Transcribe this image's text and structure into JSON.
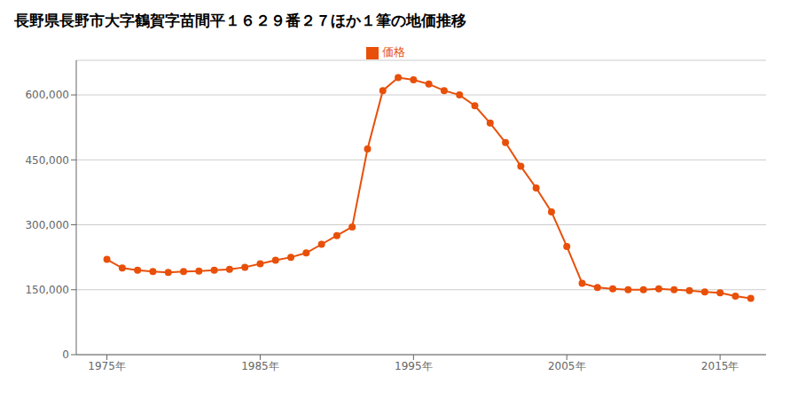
{
  "chart_data": {
    "type": "line",
    "title": "長野県長野市大字鶴賀字苗間平１６２９番２７ほか１筆の地価推移",
    "x": [
      1975,
      1976,
      1977,
      1978,
      1979,
      1980,
      1981,
      1982,
      1983,
      1984,
      1985,
      1986,
      1987,
      1988,
      1989,
      1990,
      1991,
      1992,
      1993,
      1994,
      1995,
      1996,
      1997,
      1998,
      1999,
      2000,
      2001,
      2002,
      2003,
      2004,
      2005,
      2006,
      2007,
      2008,
      2009,
      2010,
      2011,
      2012,
      2013,
      2014,
      2015,
      2016,
      2017
    ],
    "series": [
      {
        "name": "価格",
        "color": "#E8500A",
        "marker": "circle",
        "values": [
          220000,
          200000,
          195000,
          192000,
          190000,
          192000,
          193000,
          195000,
          197000,
          202000,
          210000,
          218000,
          225000,
          235000,
          255000,
          275000,
          295000,
          475000,
          610000,
          640000,
          635000,
          625000,
          610000,
          600000,
          575000,
          535000,
          490000,
          435000,
          385000,
          330000,
          250000,
          165000,
          155000,
          152000,
          150000,
          150000,
          152000,
          150000,
          148000,
          145000,
          143000,
          135000,
          130000
        ]
      }
    ],
    "xlim": [
      1973,
      2018
    ],
    "xticks": [
      {
        "value": 1975,
        "label": "1975年"
      },
      {
        "value": 1985,
        "label": "1985年"
      },
      {
        "value": 1995,
        "label": "1995年"
      },
      {
        "value": 2005,
        "label": "2005年"
      },
      {
        "value": 2015,
        "label": "2015年"
      }
    ],
    "ylim": [
      0,
      680000
    ],
    "yticks": [
      0,
      {
        "value": 150000,
        "label": "150,000"
      },
      {
        "value": 300000,
        "label": "300,000"
      },
      {
        "value": 450000,
        "label": "450,000"
      },
      {
        "value": 600000,
        "label": "600,000"
      }
    ],
    "grid": "y",
    "legend": "top"
  }
}
